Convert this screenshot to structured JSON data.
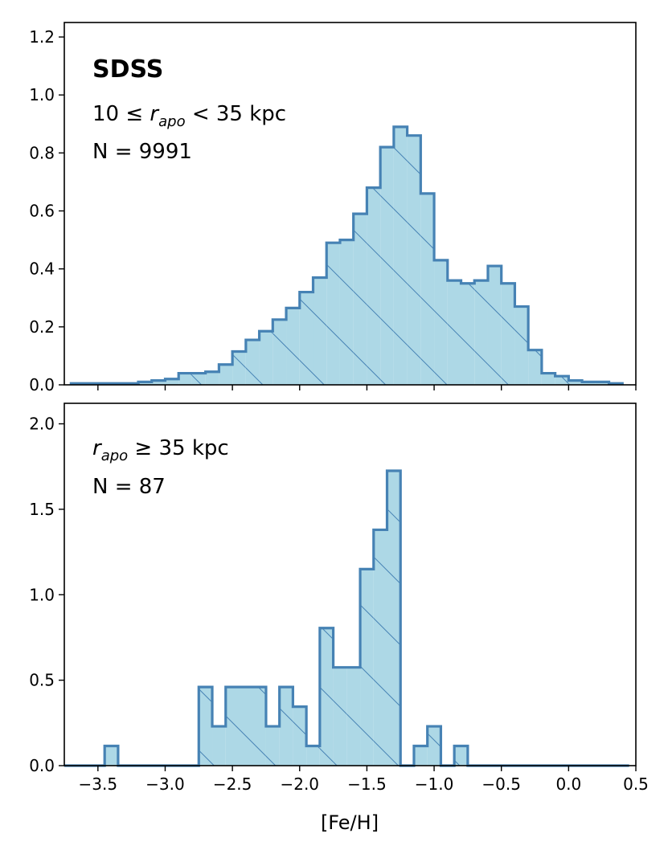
{
  "colors": {
    "fill": "#add8e6",
    "edge": "#4682b4",
    "hatch": "#4682b4"
  },
  "chart_data": [
    {
      "type": "histogram",
      "panel": "top",
      "title": "SDSS",
      "annotation_prefix": "10 ≤ ",
      "annotation_var": "r",
      "annotation_sub": "apo",
      "annotation_suffix": " < 35 kpc",
      "count_label": "N = 9991",
      "xlabel": "",
      "ylabel": "",
      "xlim": [
        -3.75,
        0.5
      ],
      "ylim": [
        0.0,
        1.25
      ],
      "yticks": [
        0.0,
        0.2,
        0.4,
        0.6,
        0.8,
        1.0,
        1.2
      ],
      "ytick_labels": [
        "0.0",
        "0.2",
        "0.4",
        "0.6",
        "0.8",
        "1.0",
        "1.2"
      ],
      "bin_edges": [
        -3.7,
        -3.6,
        -3.5,
        -3.4,
        -3.3,
        -3.2,
        -3.1,
        -3.0,
        -2.9,
        -2.8,
        -2.7,
        -2.6,
        -2.5,
        -2.4,
        -2.3,
        -2.2,
        -2.1,
        -2.0,
        -1.9,
        -1.8,
        -1.7,
        -1.6,
        -1.5,
        -1.4,
        -1.3,
        -1.2,
        -1.1,
        -1.0,
        -0.9,
        -0.8,
        -0.7,
        -0.6,
        -0.5,
        -0.4,
        -0.3,
        -0.2,
        -0.1,
        0.0,
        0.1,
        0.2,
        0.3,
        0.4
      ],
      "values": [
        0.005,
        0.005,
        0.005,
        0.005,
        0.005,
        0.01,
        0.015,
        0.02,
        0.04,
        0.04,
        0.045,
        0.07,
        0.115,
        0.155,
        0.185,
        0.225,
        0.265,
        0.32,
        0.37,
        0.49,
        0.5,
        0.59,
        0.68,
        0.82,
        0.89,
        0.86,
        0.66,
        0.43,
        0.36,
        0.35,
        0.36,
        0.41,
        0.35,
        0.27,
        0.12,
        0.04,
        0.03,
        0.015,
        0.01,
        0.01,
        0.005
      ]
    },
    {
      "type": "histogram",
      "panel": "bottom",
      "annotation_var": "r",
      "annotation_sub": "apo",
      "annotation_suffix": " ≥ 35 kpc",
      "count_label": "N = 87",
      "xlabel": "[Fe/H]",
      "ylabel": "",
      "xlim": [
        -3.75,
        0.5
      ],
      "ylim": [
        0.0,
        2.12
      ],
      "yticks": [
        0.0,
        0.5,
        1.0,
        1.5,
        2.0
      ],
      "ytick_labels": [
        "0.0",
        "0.5",
        "1.0",
        "1.5",
        "2.0"
      ],
      "xticks": [
        -3.5,
        -3.0,
        -2.5,
        -2.0,
        -1.5,
        -1.0,
        -0.5,
        0.0,
        0.5
      ],
      "xtick_labels": [
        "−3.5",
        "−3.0",
        "−2.5",
        "−2.0",
        "−1.5",
        "−1.0",
        "−0.5",
        "0.0",
        "0.5"
      ],
      "bin_edges": [
        -3.75,
        -3.45,
        -3.35,
        -2.75,
        -2.65,
        -2.55,
        -2.25,
        -2.15,
        -2.05,
        -1.95,
        -1.85,
        -1.75,
        -1.65,
        -1.55,
        -1.45,
        -1.35,
        -1.25,
        -1.15,
        -1.05,
        -0.95,
        -0.85,
        -0.75,
        0.45
      ],
      "values": [
        0.0,
        0.115,
        0.0,
        0.46,
        0.23,
        0.46,
        0.23,
        0.46,
        0.345,
        0.115,
        0.805,
        0.575,
        0.575,
        1.15,
        1.38,
        1.725,
        0.0,
        0.115,
        0.23,
        0.0,
        0.115,
        0.0
      ]
    }
  ]
}
